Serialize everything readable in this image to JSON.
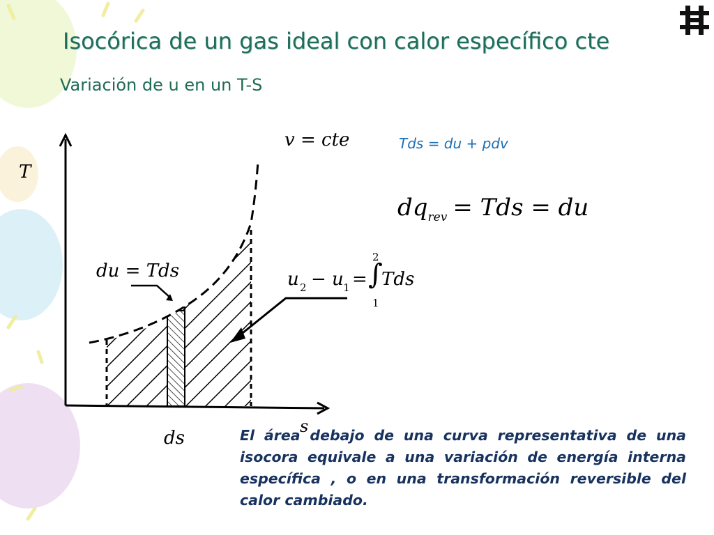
{
  "slide": {
    "title": "Isocórica de un gas ideal con calor específico cte",
    "subtitle": "Variación de u en un T-S"
  },
  "diagram": {
    "y_axis_label": "T",
    "x_axis_label": "s",
    "curve_label": "v = cte",
    "strip_label": "du = Tds",
    "strip_width_label": "ds"
  },
  "equations": {
    "gibbs": "Tds = du + pdv",
    "dq": {
      "lhs": "dq",
      "sub": "rev",
      "rhs": "= Tds = du"
    },
    "integral": {
      "lhs": "u",
      "lhs_sub": "2",
      "minus": "− u",
      "minus_sub": "1",
      "eq": "=",
      "upper": "2",
      "lower": "1",
      "body": "Tds"
    }
  },
  "description": "El área debajo de una curva representativa de una isocora  equivale a una variación de energía interna específica , o en una transformación reversible del calor cambiado.",
  "colors": {
    "title": "#1e6d5b",
    "blue_equation": "#1c6fb6",
    "description": "#17325f"
  },
  "logo_icon": "utn-logo-icon"
}
